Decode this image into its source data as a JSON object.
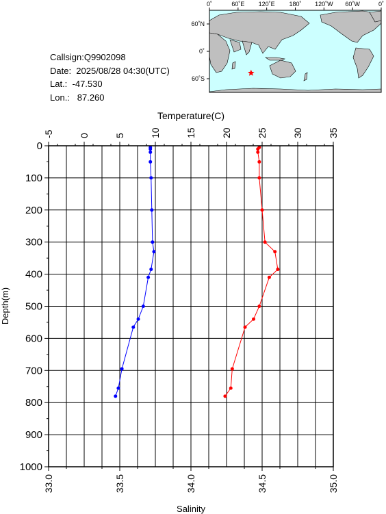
{
  "station": {
    "callsign": "Callsign:Q9902098",
    "date": "Date:  2025/08/28 04:30(UTC)",
    "lat": "Lat.:  -47.530",
    "lon": "Lon.:   87.260"
  },
  "map": {
    "lon_ticks": [
      "0˚",
      "60˚E",
      "120˚E",
      "180˚",
      "120˚W",
      "60˚W",
      "0˚"
    ],
    "lat_ticks": [
      "60˚N",
      "0˚",
      "60˚S"
    ],
    "marker": {
      "lon": 87.26,
      "lat": -47.53,
      "color": "#ff0000"
    },
    "ocean_color": "#ccffff",
    "land_color": "#bfbfbf"
  },
  "chart_data": {
    "type": "line",
    "ylabel": "Depth(m)",
    "ylim": [
      0,
      1000
    ],
    "y_ticks": [
      "0",
      "100",
      "200",
      "300",
      "400",
      "500",
      "600",
      "700",
      "800",
      "900",
      "1000"
    ],
    "top_axis": {
      "label": "Temperature(C)",
      "range": [
        -5,
        35
      ],
      "ticks": [
        "-5",
        "0",
        "5",
        "10",
        "15",
        "20",
        "25",
        "30",
        "35"
      ]
    },
    "bottom_axis": {
      "label": "Salinity",
      "range": [
        33.0,
        35.0
      ],
      "ticks": [
        "33.0",
        "33.5",
        "34.0",
        "34.5",
        "35.0"
      ]
    },
    "grid": true,
    "series": [
      {
        "axis": "top",
        "color": "#0000ff",
        "points": [
          [
            9.3,
            5
          ],
          [
            9.3,
            10
          ],
          [
            9.3,
            20
          ],
          [
            9.3,
            50
          ],
          [
            9.4,
            100
          ],
          [
            9.5,
            200
          ],
          [
            9.6,
            300
          ],
          [
            9.8,
            330
          ],
          [
            9.4,
            385
          ],
          [
            9.0,
            410
          ],
          [
            8.3,
            500
          ],
          [
            7.6,
            540
          ],
          [
            6.9,
            565
          ],
          [
            5.3,
            695
          ],
          [
            4.8,
            755
          ],
          [
            4.4,
            780
          ]
        ]
      },
      {
        "axis": "bottom",
        "color": "#ff0000",
        "points": [
          [
            34.48,
            5
          ],
          [
            34.47,
            10
          ],
          [
            34.47,
            20
          ],
          [
            34.48,
            50
          ],
          [
            34.48,
            100
          ],
          [
            34.5,
            200
          ],
          [
            34.52,
            300
          ],
          [
            34.59,
            330
          ],
          [
            34.61,
            385
          ],
          [
            34.55,
            410
          ],
          [
            34.48,
            500
          ],
          [
            34.44,
            540
          ],
          [
            34.38,
            565
          ],
          [
            34.29,
            695
          ],
          [
            34.28,
            755
          ],
          [
            34.24,
            780
          ]
        ]
      }
    ]
  }
}
